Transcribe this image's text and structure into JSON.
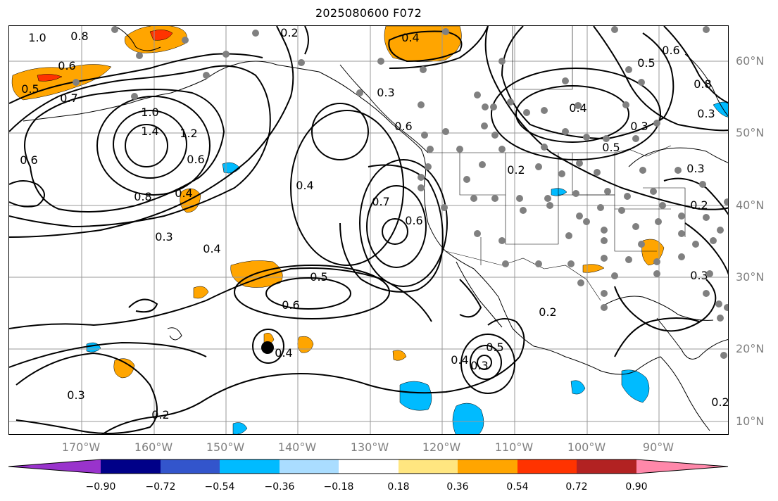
{
  "title": "2025080600 F072",
  "lat_labels": [
    "60°N",
    "50°N",
    "40°N",
    "30°N",
    "20°N",
    "10°N"
  ],
  "lon_labels": [
    "170°W",
    "160°W",
    "150°W",
    "140°W",
    "130°W",
    "120°W",
    "110°W",
    "100°W",
    "90°W"
  ],
  "colorbar": {
    "ticks": [
      "−0.90",
      "−0.72",
      "−0.54",
      "−0.36",
      "−0.18",
      "0.18",
      "0.36",
      "0.54",
      "0.72",
      "0.90"
    ],
    "colors": [
      "#9933cc",
      "#000088",
      "#3355cc",
      "#00bbff",
      "#aaddff",
      "#ffffff",
      "#ffe680",
      "#ffa500",
      "#ff3300",
      "#b22222",
      "#ff88aa"
    ]
  },
  "contour_labels": [
    "1.0",
    "0.8",
    "0.6",
    "0.5",
    "0.7",
    "0.2",
    "0.4",
    "1.0",
    "1.4",
    "1.2",
    "0.6",
    "0.6",
    "0.8",
    "0.4",
    "0.3",
    "0.4",
    "0.3",
    "0.3",
    "0.6",
    "0.4",
    "0.7",
    "0.6",
    "0.5",
    "0.6",
    "0.2",
    "0.4",
    "0.5",
    "0.3",
    "0.2",
    "0.4",
    "0.3",
    "0.2",
    "0.2",
    "0.3",
    "0.5",
    "0.6",
    "0.8",
    "0.4",
    "0.3",
    "0.5",
    "0.3",
    "0.2"
  ],
  "colors": {
    "frame": "#000000",
    "grid": "#999999",
    "axis_label": "#808080",
    "orange": "#ffa500",
    "cyan": "#00bbff",
    "red": "#ff3300"
  }
}
